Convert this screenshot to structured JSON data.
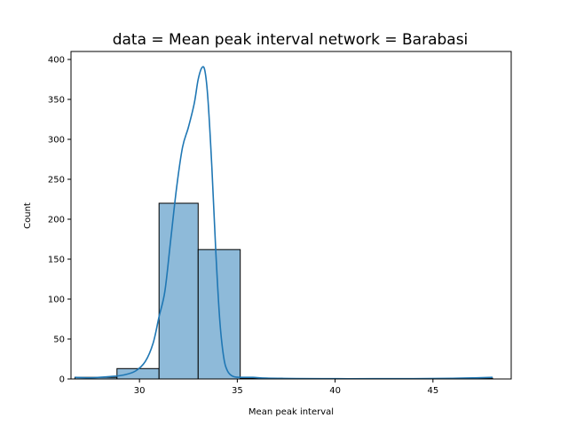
{
  "chart_data": {
    "type": "bar",
    "title": "data = Mean peak interval network = Barabasi",
    "xlabel": "Mean peak interval",
    "ylabel": "Count",
    "xlim": [
      26.5,
      49.0
    ],
    "ylim": [
      0,
      410
    ],
    "xticks": [
      30,
      35,
      40,
      45
    ],
    "yticks": [
      0,
      50,
      100,
      150,
      200,
      250,
      300,
      350,
      400
    ],
    "bins": [
      {
        "x0": 26.7,
        "x1": 28.85,
        "count": 2
      },
      {
        "x0": 28.85,
        "x1": 31.0,
        "count": 13
      },
      {
        "x0": 31.0,
        "x1": 33.0,
        "count": 220
      },
      {
        "x0": 33.0,
        "x1": 35.15,
        "count": 162
      },
      {
        "x0": 35.15,
        "x1": 37.3,
        "count": 1
      },
      {
        "x0": 37.3,
        "x1": 39.45,
        "count": 0
      },
      {
        "x0": 39.45,
        "x1": 41.6,
        "count": 0
      },
      {
        "x0": 41.6,
        "x1": 43.75,
        "count": 0
      },
      {
        "x0": 43.75,
        "x1": 45.9,
        "count": 0
      },
      {
        "x0": 45.9,
        "x1": 48.05,
        "count": 1
      }
    ],
    "kde": [
      [
        26.7,
        2
      ],
      [
        27.5,
        1.5
      ],
      [
        28.5,
        3
      ],
      [
        29.2,
        5
      ],
      [
        29.8,
        10
      ],
      [
        30.3,
        22
      ],
      [
        30.7,
        45
      ],
      [
        31.0,
        78
      ],
      [
        31.3,
        110
      ],
      [
        31.6,
        175
      ],
      [
        31.9,
        240
      ],
      [
        32.2,
        290
      ],
      [
        32.5,
        315
      ],
      [
        32.8,
        345
      ],
      [
        33.0,
        375
      ],
      [
        33.2,
        390
      ],
      [
        33.35,
        385
      ],
      [
        33.5,
        350
      ],
      [
        33.7,
        265
      ],
      [
        33.9,
        160
      ],
      [
        34.1,
        75
      ],
      [
        34.3,
        28
      ],
      [
        34.5,
        10
      ],
      [
        34.8,
        3
      ],
      [
        35.3,
        2
      ],
      [
        35.8,
        2
      ],
      [
        36.5,
        1
      ],
      [
        38,
        0.5
      ],
      [
        40,
        0.3
      ],
      [
        42,
        0.3
      ],
      [
        44,
        0.4
      ],
      [
        46,
        0.8
      ],
      [
        47.3,
        1.5
      ],
      [
        48.05,
        2
      ]
    ],
    "colors": {
      "bar_fill": "#8ebad9",
      "bar_edge": "#000000",
      "kde_line": "#1f77b4"
    },
    "grid": false,
    "legend": "none"
  }
}
